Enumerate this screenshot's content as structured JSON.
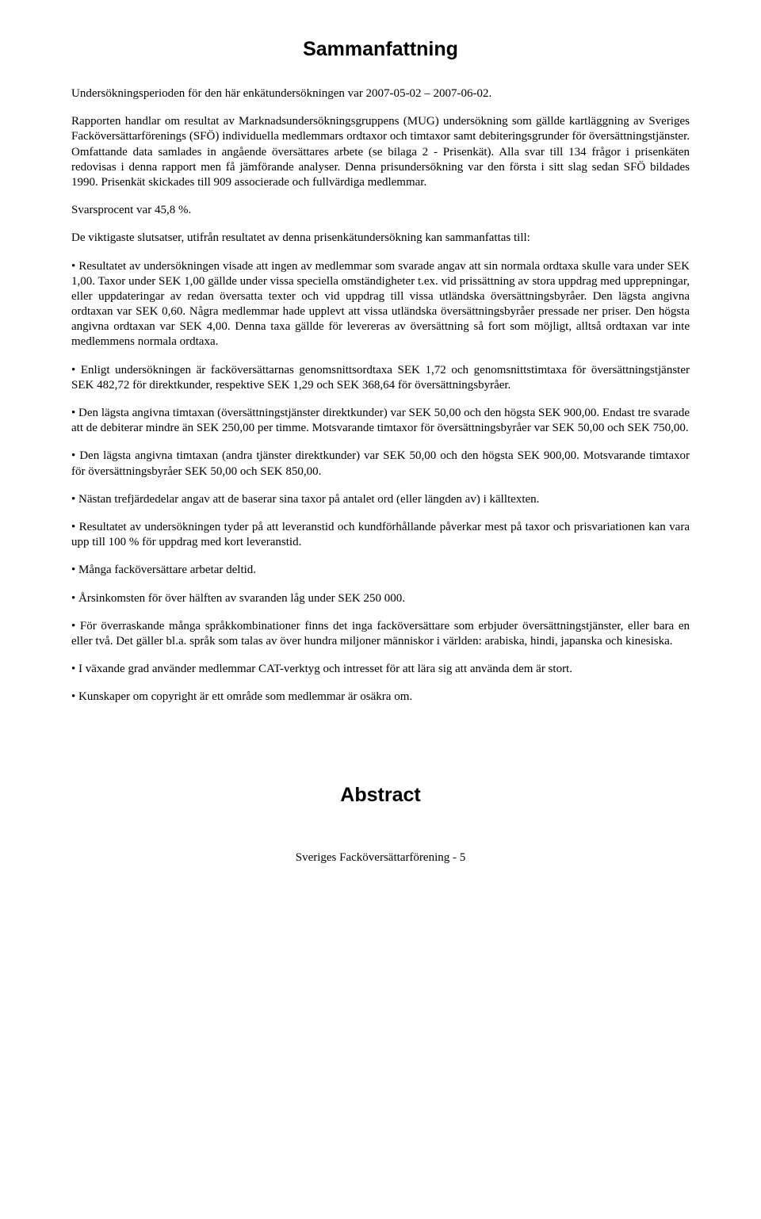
{
  "heading": "Sammanfattning",
  "p1": "Undersökningsperioden för den här enkätundersökningen var 2007-05-02 – 2007-06-02.",
  "p2": "Rapporten handlar om resultat av Marknadsundersökningsgruppens (MUG) undersökning som gällde kartläggning av Sveriges Facköversättarförenings (SFÖ) individuella medlemmars ordtaxor och timtaxor samt debiteringsgrunder för översättningstjänster. Omfattande data samlades in angående översättares arbete (se bilaga 2 - Prisenkät). Alla svar till 134 frågor i prisenkäten redovisas i denna rapport men få jämförande analyser. Denna prisundersökning var den första i sitt slag sedan SFÖ bildades 1990. Prisenkät skickades till 909 associerade och fullvärdiga medlemmar.",
  "p3": "Svarsprocent var 45,8 %.",
  "p4": "De viktigaste slutsatser, utifrån resultatet av denna prisenkätundersökning kan sammanfattas till:",
  "b1": "• Resultatet av undersökningen visade att ingen av medlemmar som svarade angav att sin normala ordtaxa skulle vara under SEK 1,00. Taxor under SEK 1,00 gällde under vissa speciella omständigheter t.ex. vid prissättning av stora uppdrag med upprepningar, eller uppdateringar av redan översatta texter och vid uppdrag till vissa utländska översättningsbyråer. Den lägsta angivna ordtaxan var SEK 0,60. Några medlemmar hade upplevt att vissa utländska översättningsbyråer pressade ner priser. Den högsta angivna ordtaxan var SEK 4,00. Denna taxa gällde för levereras av översättning så fort som möjligt, alltså ordtaxan var inte medlemmens normala ordtaxa.",
  "b2": "• Enligt undersökningen är facköversättarnas genomsnittsordtaxa SEK 1,72 och genomsnittstimtaxa för översättningstjänster SEK 482,72 för direktkunder, respektive SEK 1,29 och SEK 368,64 för översättningsbyråer.",
  "b3": "• Den lägsta angivna timtaxan (översättningstjänster direktkunder) var SEK 50,00 och den högsta SEK 900,00. Endast tre svarade att de debiterar mindre än SEK 250,00 per timme. Motsvarande timtaxor för översättningsbyråer var SEK 50,00 och SEK 750,00.",
  "b4": "• Den lägsta angivna timtaxan (andra tjänster direktkunder) var SEK 50,00 och den högsta SEK 900,00. Motsvarande timtaxor för översättningsbyråer SEK 50,00 och SEK 850,00.",
  "b5": "• Nästan trefjärdedelar angav att de baserar sina taxor på antalet ord (eller längden av) i källtexten.",
  "b6": "• Resultatet av undersökningen tyder på att leveranstid och kundförhållande påverkar mest på taxor och prisvariationen kan vara upp till 100 % för uppdrag med kort leveranstid.",
  "b7": "• Många facköversättare arbetar deltid.",
  "b8": "• Årsinkomsten för över hälften av svaranden låg under SEK 250 000.",
  "b9": "• För överraskande många språkkombinationer finns det inga facköversättare som erbjuder översättningstjänster, eller bara en eller två. Det gäller bl.a. språk som talas av över hundra miljoner människor i världen: arabiska, hindi, japanska och kinesiska.",
  "b10": "• I växande grad använder medlemmar CAT-verktyg och intresset för att lära sig att använda dem är stort.",
  "b11": "• Kunskaper om copyright är ett område som medlemmar är osäkra om.",
  "abstract": "Abstract",
  "footer": "Sveriges Facköversättarförening - 5"
}
